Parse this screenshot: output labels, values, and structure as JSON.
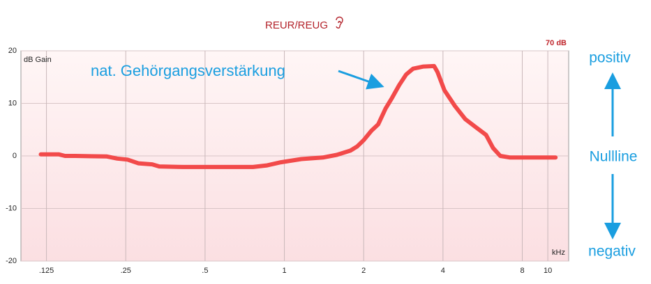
{
  "chart_data": {
    "type": "line",
    "title": "REUR/REUG",
    "level_label": "70 dB",
    "y_label": "dB Gain",
    "x_label": "kHz",
    "annotation": "nat. Gehörgangsverstärkung",
    "side_labels": [
      "positiv",
      "Nullline",
      "negativ"
    ],
    "log_x": true,
    "grid": true,
    "color": "#f24a4a",
    "x": [
      0.119,
      0.139,
      0.147,
      0.161,
      0.212,
      0.232,
      0.254,
      0.279,
      0.315,
      0.335,
      0.414,
      0.76,
      0.86,
      0.97,
      1.16,
      1.4,
      1.58,
      1.78,
      1.89,
      2.0,
      2.14,
      2.27,
      2.42,
      2.56,
      2.73,
      2.9,
      3.08,
      3.37,
      3.7,
      3.81,
      4.05,
      4.44,
      4.86,
      5.32,
      5.83,
      6.2,
      6.6,
      7.2,
      10.7
    ],
    "values": [
      0.3,
      0.3,
      0,
      0,
      -0.1,
      -0.5,
      -0.7,
      -1.4,
      -1.6,
      -2.0,
      -2.1,
      -2.1,
      -1.8,
      -1.2,
      -0.6,
      -0.3,
      0.2,
      1.0,
      1.8,
      3.0,
      4.8,
      6.0,
      9.0,
      11.0,
      13.5,
      15.5,
      16.6,
      17.0,
      17.1,
      16.0,
      12.5,
      9.5,
      7.0,
      5.5,
      4.0,
      1.5,
      0,
      -0.3,
      -0.3
    ],
    "xlim": [
      0.1,
      12
    ],
    "ylim": [
      -20,
      20
    ],
    "xticks": [
      {
        "value": 0.125,
        "label": ".125"
      },
      {
        "value": 0.25,
        "label": ".25"
      },
      {
        "value": 0.5,
        "label": ".5"
      },
      1,
      2,
      4,
      8,
      10
    ],
    "yticks": [
      20,
      10,
      0,
      -10,
      -20
    ]
  }
}
